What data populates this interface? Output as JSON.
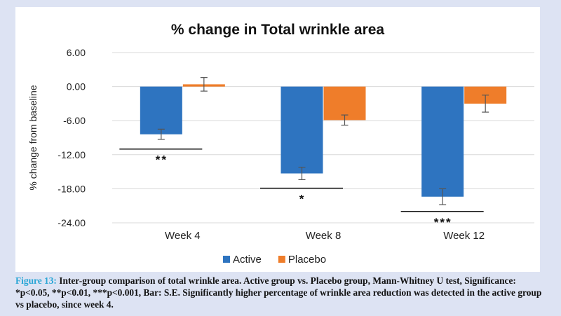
{
  "chart_data": {
    "type": "bar",
    "title": "% change in Total wrinkle area",
    "ylabel": "% change from baseline",
    "xlabel": "",
    "categories": [
      "Week 4",
      "Week 8",
      "Week 12"
    ],
    "series": [
      {
        "name": "Active",
        "color": "#2e74c0",
        "values": [
          -8.4,
          -15.3,
          -19.4
        ],
        "errors": [
          0.9,
          1.1,
          1.4
        ]
      },
      {
        "name": "Placebo",
        "color": "#ef7d2a",
        "values": [
          0.4,
          -5.9,
          -3.0
        ],
        "errors": [
          1.2,
          0.9,
          1.5
        ]
      }
    ],
    "ylim": [
      -24,
      6
    ],
    "yticks": [
      6,
      0,
      -6,
      -12,
      -18,
      -24
    ],
    "ytick_labels": [
      "6.00",
      "0.00",
      "-6.00",
      "-12.00",
      "-18.00",
      "-24.00"
    ],
    "grid": true,
    "legend_position": "bottom",
    "significance": [
      {
        "category": "Week 4",
        "label": "**",
        "line_y": -11.0
      },
      {
        "category": "Week 8",
        "label": "*",
        "line_y": -17.9
      },
      {
        "category": "Week 12",
        "label": "***",
        "line_y": -22.0
      }
    ]
  },
  "caption": {
    "label": "Figure 13:",
    "text": " Inter-group comparison of total wrinkle area. Active group vs. Placebo group, Mann-Whitney U test, Significance: *p<0.05, **p<0.01, ***p<0.001, Bar: S.E. Significantly higher percentage of wrinkle area reduction was detected in the active group vs placebo, since week 4."
  }
}
